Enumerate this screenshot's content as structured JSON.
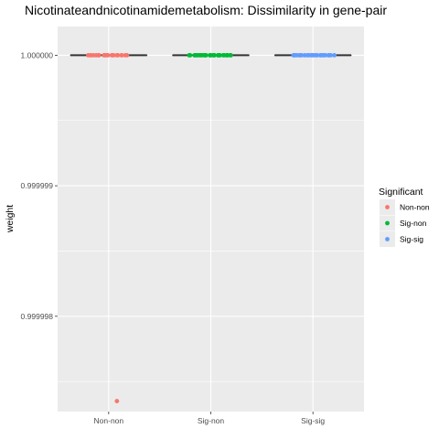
{
  "chart_data": {
    "type": "boxplot-jitter",
    "title": "Nicotinateandnicotinamidemetabolism: Dissimilarity in gene-pair",
    "xlabel": "",
    "ylabel": "weight",
    "categories": [
      "Non-non",
      "Sig-non",
      "Sig-sig"
    ],
    "y_ticks": [
      0.999998,
      0.999999,
      1.0
    ],
    "y_tick_labels": [
      "0.999998",
      "0.999999",
      "1.000000"
    ],
    "ylim": [
      0.99999727,
      1.00000022
    ],
    "grid": true,
    "legend": {
      "title": "Significant",
      "position": "right",
      "entries": [
        "Non-non",
        "Sig-non",
        "Sig-sig"
      ]
    },
    "colors": {
      "Non-non": "#F8766D",
      "Sig-non": "#00BA38",
      "Sig-sig": "#619CFF",
      "panel": "#EBEBEB",
      "grid": "#FFFFFF",
      "box": "#333333"
    },
    "series": [
      {
        "name": "Non-non",
        "box": {
          "q1": 1.0,
          "median": 1.0,
          "q3": 1.0,
          "whisker_low": 1.0,
          "whisker_high": 1.0
        },
        "points": [
          1.0,
          1.0,
          1.0,
          1.0,
          1.0,
          1.0,
          1.0,
          1.0,
          1.0,
          1.0,
          1.0,
          1.0,
          1.0,
          1.0,
          1.0,
          1.0,
          1.0,
          1.0,
          1.0,
          1.0,
          0.99999735
        ]
      },
      {
        "name": "Sig-non",
        "box": {
          "q1": 1.0,
          "median": 1.0,
          "q3": 1.0,
          "whisker_low": 1.0,
          "whisker_high": 1.0
        },
        "points": [
          1.0,
          1.0,
          1.0,
          1.0,
          1.0,
          1.0,
          1.0,
          1.0,
          1.0,
          1.0,
          1.0,
          1.0,
          1.0,
          1.0,
          1.0,
          1.0,
          1.0,
          1.0,
          1.0,
          1.0,
          1.0,
          1.0,
          1.0,
          1.0,
          1.0,
          1.0,
          1.0,
          1.0,
          1.0,
          1.0
        ]
      },
      {
        "name": "Sig-sig",
        "box": {
          "q1": 1.0,
          "median": 1.0,
          "q3": 1.0,
          "whisker_low": 1.0,
          "whisker_high": 1.0
        },
        "points": [
          1.0,
          1.0,
          1.0,
          1.0,
          1.0,
          1.0,
          1.0,
          1.0,
          1.0,
          1.0,
          1.0,
          1.0,
          1.0,
          1.0,
          1.0,
          1.0,
          1.0,
          1.0,
          1.0,
          1.0,
          1.0,
          1.0,
          1.0,
          1.0
        ]
      }
    ]
  }
}
